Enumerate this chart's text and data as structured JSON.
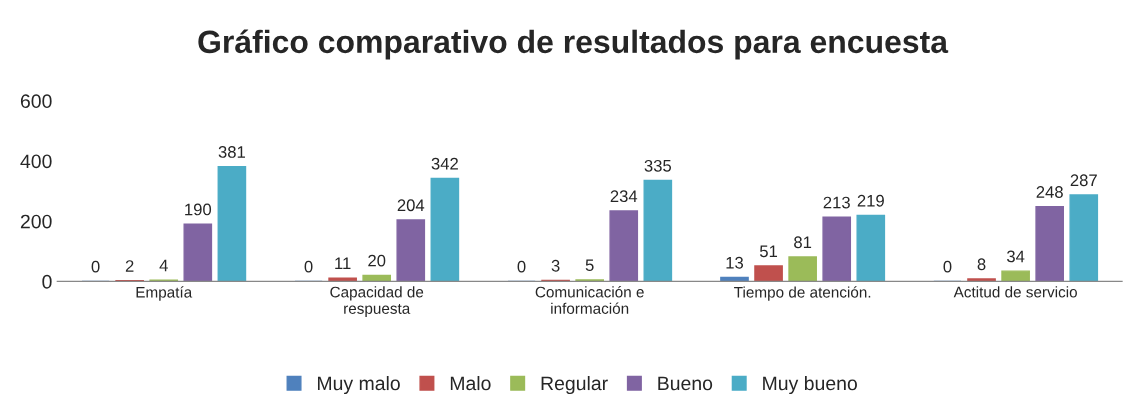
{
  "chart_data": {
    "type": "bar",
    "title": "Gráfico comparativo de resultados para encuesta",
    "categories": [
      "Empatía",
      "Capacidad de\nrespuesta",
      "Comunicación e\ninformación",
      "Tiempo de atención.",
      "Actitud de servicio"
    ],
    "series": [
      {
        "name": "Muy malo",
        "color": "#4f81bd",
        "values": [
          0,
          0,
          0,
          13,
          0
        ]
      },
      {
        "name": "Malo",
        "color": "#c0504d",
        "values": [
          2,
          11,
          3,
          51,
          8
        ]
      },
      {
        "name": "Regular",
        "color": "#9bbb59",
        "values": [
          4,
          20,
          5,
          81,
          34
        ]
      },
      {
        "name": "Bueno",
        "color": "#8064a2",
        "values": [
          190,
          204,
          234,
          213,
          248
        ]
      },
      {
        "name": "Muy bueno",
        "color": "#4bacc6",
        "values": [
          381,
          342,
          335,
          219,
          287
        ]
      }
    ],
    "ylim": [
      0,
      600
    ],
    "yticks": [
      0,
      200,
      400,
      600
    ],
    "grid": false,
    "legend": "bottom",
    "data_labels": true
  }
}
